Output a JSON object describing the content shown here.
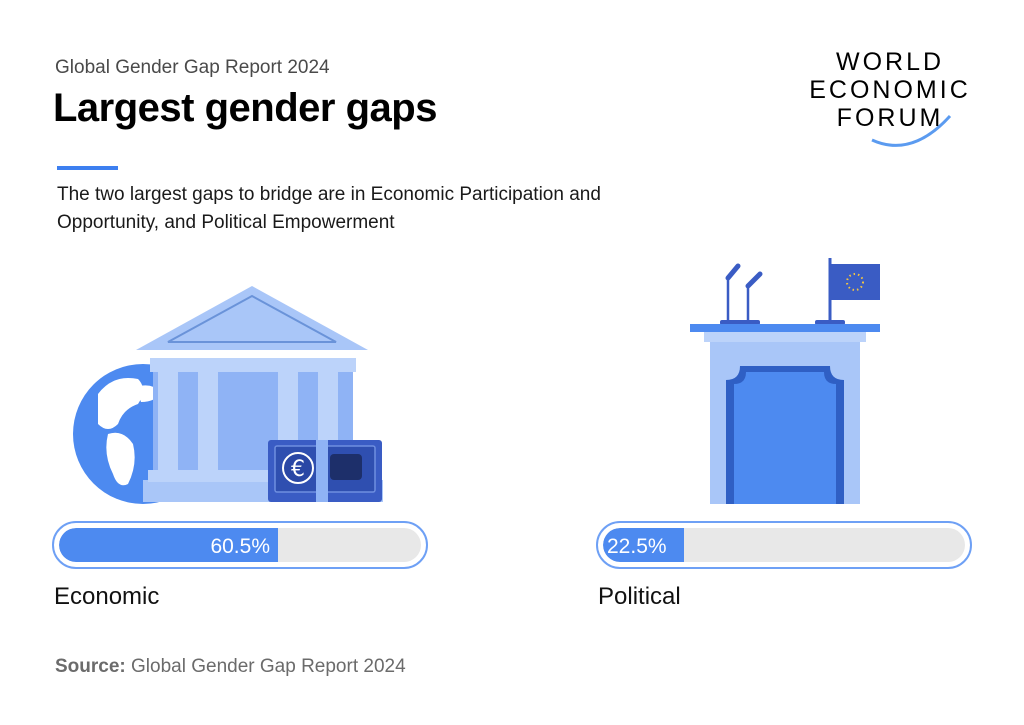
{
  "header": {
    "subtitle": "Global Gender Gap Report 2024",
    "title": "Largest gender gaps",
    "description": "The two largest gaps to bridge are in Economic Participation and Opportunity, and Political Empowerment"
  },
  "logo": {
    "line1": "WORLD",
    "line2": "ECONOMIC",
    "line3": "FORUM"
  },
  "illustrations": {
    "economic": "bank-globe-euro-icon",
    "political": "podium-flag-icon"
  },
  "chart_data": {
    "type": "bar",
    "orientation": "horizontal",
    "title": "Largest gender gaps",
    "categories": [
      "Economic",
      "Political"
    ],
    "values": [
      60.5,
      22.5
    ],
    "value_labels": [
      "60.5%",
      "22.5%"
    ],
    "unit": "%",
    "xlim": [
      0,
      100
    ],
    "legend": "none",
    "grid": false
  },
  "colors": {
    "accent": "#3d7ff0",
    "fill": "#4d8af0",
    "track": "#e8e8e8",
    "border": "#6ea0f5"
  },
  "source": {
    "label": "Source:",
    "text": "Global Gender Gap Report 2024"
  }
}
